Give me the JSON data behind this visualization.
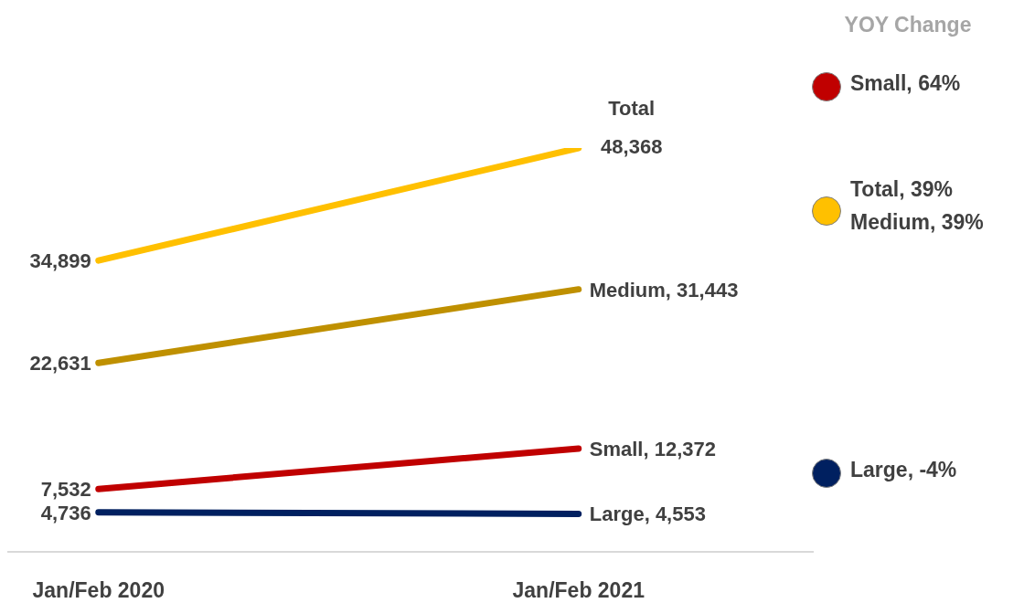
{
  "chart_data": {
    "type": "line",
    "categories": [
      "Jan/Feb 2020",
      "Jan/Feb 2021"
    ],
    "marker": "none",
    "legend_title": "YOY Change",
    "series": [
      {
        "name": "Total",
        "color": "#ffc000",
        "values": [
          34899,
          48368
        ],
        "value_labels": [
          "34,899",
          "48,368"
        ]
      },
      {
        "name": "Medium,",
        "color": "#bf9000",
        "values": [
          22631,
          31443
        ],
        "value_labels": [
          "22,631",
          "31,443"
        ]
      },
      {
        "name": "Small,",
        "color": "#c00000",
        "values": [
          7532,
          12372
        ],
        "value_labels": [
          "7,532",
          "12,372"
        ]
      },
      {
        "name": "Large,",
        "color": "#002060",
        "values": [
          4736,
          4553
        ],
        "value_labels": [
          "4,736",
          "4,553"
        ]
      }
    ],
    "annotations": [
      "Small, 64%",
      "Total, 39%",
      "Medium, 39%",
      "Large, -4%"
    ]
  }
}
